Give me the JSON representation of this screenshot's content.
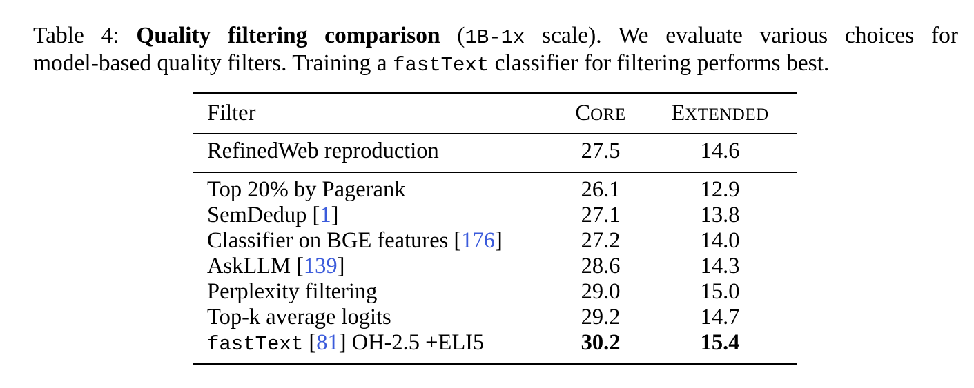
{
  "caption": {
    "label": "Table 4:",
    "title": "Quality filtering comparison",
    "paren_open": "(",
    "scale_code": "1B-1x",
    "paren_rest": "scale).  We evaluate various choices for",
    "line2_a": "model-based quality filters. Training a ",
    "line2_code": "fastText",
    "line2_b": " classifier for filtering performs best."
  },
  "table": {
    "headers": {
      "filter": "Filter",
      "core_first": "C",
      "core_rest": "ORE",
      "ext_first": "E",
      "ext_rest": "XTENDED"
    },
    "baseline": {
      "filter": "RefinedWeb reproduction",
      "core": "27.5",
      "extended": "14.6"
    },
    "rows": [
      {
        "filter": "Top 20% by Pagerank",
        "cite": "",
        "core": "26.1",
        "extended": "12.9"
      },
      {
        "filter": "SemDedup [",
        "cite": "1",
        "filter_end": "]",
        "core": "27.1",
        "extended": "13.8"
      },
      {
        "filter": "Classifier on BGE features [",
        "cite": "176",
        "filter_end": "]",
        "core": "27.2",
        "extended": "14.0"
      },
      {
        "filter": "AskLLM [",
        "cite": "139",
        "filter_end": "]",
        "core": "28.6",
        "extended": "14.3"
      },
      {
        "filter": "Perplexity filtering",
        "cite": "",
        "core": "29.0",
        "extended": "15.0"
      },
      {
        "filter": "Top-k average logits",
        "cite": "",
        "core": "29.2",
        "extended": "14.7"
      },
      {
        "filter_code": "fastText",
        "filter": " [",
        "cite": "81",
        "filter_end": "] OH-2.5 +ELI5",
        "core": "30.2",
        "extended": "15.4"
      }
    ]
  },
  "colors": {
    "citation": "#3b5bdb",
    "text": "#000000",
    "background": "#ffffff"
  }
}
